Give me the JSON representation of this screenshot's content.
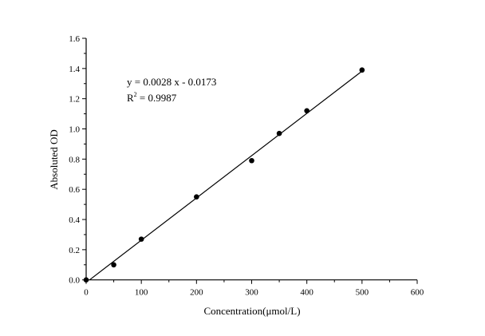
{
  "chart_data": {
    "type": "scatter",
    "title": "",
    "xlabel": "Concentration(μmol/L)",
    "ylabel": "Absoluted OD",
    "xlim": [
      0,
      600
    ],
    "ylim": [
      0,
      1.6
    ],
    "xticks": [
      "0",
      "100",
      "200",
      "300",
      "400",
      "500",
      "600"
    ],
    "yticks": [
      "0.0",
      "0.2",
      "0.4",
      "0.6",
      "0.8",
      "1.0",
      "1.2",
      "1.4",
      "1.6"
    ],
    "grid": false,
    "points": {
      "x": [
        0,
        50,
        100,
        200,
        300,
        350,
        400,
        500
      ],
      "y": [
        0.0,
        0.1,
        0.27,
        0.55,
        0.79,
        0.97,
        1.12,
        1.39
      ]
    },
    "fit": {
      "slope": 0.0028,
      "intercept": -0.0173,
      "x_range": [
        6,
        500
      ]
    },
    "annotations": {
      "equation": "y = 0.0028 x - 0.0173",
      "r2_label": "R",
      "r2_sup": "2",
      "r2_value": " = 0.9987"
    },
    "colors": {
      "points": "#000000",
      "line": "#000000"
    }
  }
}
